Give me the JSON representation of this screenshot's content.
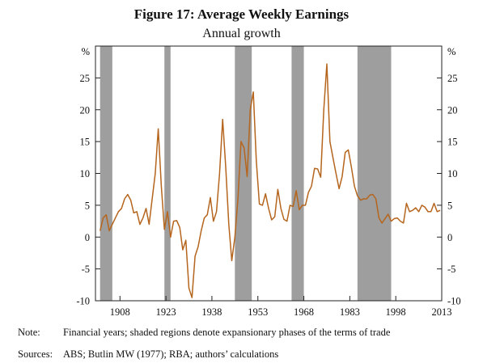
{
  "chart_data": {
    "type": "line",
    "title": "Figure 17: Average Weekly Earnings",
    "subtitle": "Annual growth",
    "unit_left": "%",
    "unit_right": "%",
    "xlim": [
      1900,
      2013
    ],
    "ylim": [
      -10,
      30
    ],
    "x_ticks": [
      1908,
      1923,
      1938,
      1953,
      1968,
      1983,
      1998,
      2013
    ],
    "y_ticks": [
      -10,
      -5,
      0,
      5,
      10,
      15,
      20,
      25
    ],
    "grid": false,
    "line_color": "#b5651d",
    "shade_color": "#9e9e9e",
    "shaded_regions": [
      [
        1901.5,
        1905.5
      ],
      [
        1922.5,
        1924.5
      ],
      [
        1945.5,
        1951
      ],
      [
        1964,
        1968
      ],
      [
        1985.5,
        1996.5
      ]
    ],
    "series": [
      {
        "x": [
          1901.5,
          1902.5,
          1903.5,
          1904.5,
          1905.5,
          1906.5,
          1907.5,
          1908.5,
          1909.5,
          1910.5,
          1911.5,
          1912.5,
          1913.5,
          1914.5,
          1915.5,
          1916.5,
          1917.5,
          1918.5,
          1919.5,
          1920.5,
          1921.5,
          1922.5,
          1923.5,
          1924.5,
          1925.5,
          1926.5,
          1927.5,
          1928.5,
          1929.5,
          1930.5,
          1931.5,
          1932.5,
          1933.5,
          1934.5,
          1935.5,
          1936.5,
          1937.5,
          1938.5,
          1939.5,
          1940.5,
          1941.5,
          1942.5,
          1943.5,
          1944.5,
          1945.5,
          1946.5,
          1947.5,
          1948.5,
          1949.5,
          1950.5,
          1951.5,
          1952.5,
          1953.5,
          1954.5,
          1955.5,
          1956.5,
          1957.5,
          1958.5,
          1959.5,
          1960.5,
          1961.5,
          1962.5,
          1963.5,
          1964.5,
          1965.5,
          1966.5,
          1967.5,
          1968.5,
          1969.5,
          1970.5,
          1971.5,
          1972.5,
          1973.5,
          1974.5,
          1975.5,
          1976.5,
          1977.5,
          1978.5,
          1979.5,
          1980.5,
          1981.5,
          1982.5,
          1983.5,
          1984.5,
          1985.5,
          1986.5,
          1987.5,
          1988.5,
          1989.5,
          1990.5,
          1991.5,
          1992.5,
          1993.5,
          1994.5,
          1995.5,
          1996.5,
          1997.5,
          1998.5,
          1999.5,
          2000.5,
          2001.5,
          2002.5,
          2003.5,
          2004.5,
          2005.5,
          2006.5,
          2007.5,
          2008.5,
          2009.5,
          2010.5,
          2011.5,
          2012.5
        ],
        "y": [
          1.0,
          3.0,
          3.5,
          1.0,
          2.0,
          3.0,
          4.0,
          4.5,
          6.0,
          6.7,
          5.8,
          3.8,
          4.0,
          2.0,
          3.0,
          4.5,
          2.0,
          6.0,
          10.0,
          17.0,
          8.0,
          1.2,
          4.0,
          0.0,
          2.5,
          2.6,
          1.5,
          -2.0,
          -0.5,
          -8.0,
          -9.5,
          -3.0,
          -1.5,
          1.0,
          3.0,
          3.5,
          6.2,
          2.5,
          4.0,
          10.0,
          18.5,
          11.0,
          2.0,
          -3.7,
          0.0,
          6.0,
          15.0,
          14.0,
          9.5,
          20.0,
          22.8,
          12.0,
          5.2,
          5.0,
          6.8,
          4.5,
          2.7,
          3.2,
          7.5,
          4.5,
          2.8,
          2.5,
          5.0,
          4.8,
          7.3,
          4.3,
          5.0,
          5.0,
          7.0,
          8.0,
          10.8,
          10.7,
          9.4,
          20.0,
          27.2,
          15.0,
          12.5,
          10.0,
          7.6,
          9.5,
          13.3,
          13.7,
          11.0,
          8.0,
          6.5,
          5.8,
          6.0,
          6.0,
          6.6,
          6.7,
          6.0,
          3.0,
          2.2,
          2.9,
          3.6,
          2.5,
          2.9,
          3.0,
          2.5,
          2.2,
          5.3,
          4.0,
          4.2,
          4.6,
          4.0,
          5.0,
          4.7,
          4.0,
          4.0,
          5.3,
          4.0,
          4.2
        ]
      }
    ]
  },
  "notes": {
    "note_label": "Note:",
    "note_text": "Financial years; shaded regions denote expansionary phases of the terms of trade",
    "sources_label": "Sources:",
    "sources_text": "ABS; Butlin MW (1977); RBA; authors’ calculations"
  }
}
